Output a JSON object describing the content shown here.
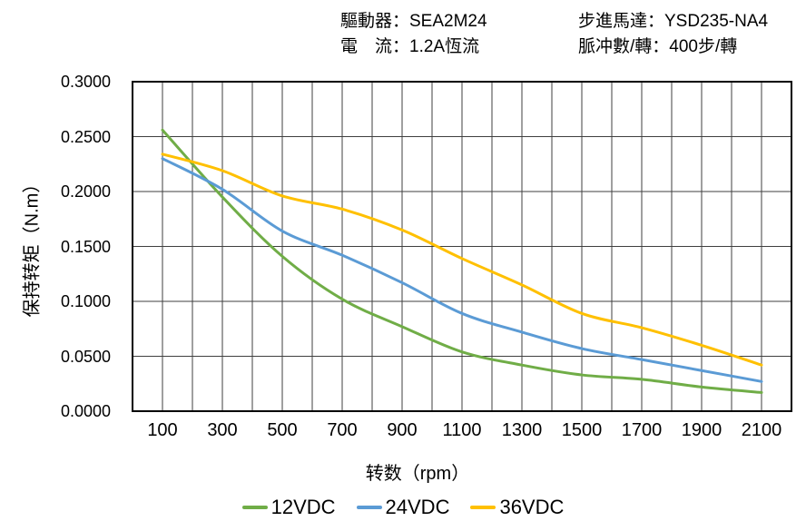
{
  "header": {
    "driver": "驅動器：SEA2M24",
    "current": "電　流：1.2A恆流",
    "motor": "步進馬達：YSD235-NA4",
    "pulses": "脈冲數/轉：400步/轉"
  },
  "colors": {
    "grid": "#3f3f3f",
    "border": "#000000",
    "text": "#000000",
    "series_12vdc": "#70AD47",
    "series_24vdc": "#5B9BD5",
    "series_36vdc": "#FFC000"
  },
  "chart_data": {
    "type": "line",
    "title": "",
    "xlabel": "转数（rpm）",
    "ylabel": "保持转矩（N.m）",
    "xlim": [
      0,
      2200
    ],
    "ylim": [
      0,
      0.3
    ],
    "grid": true,
    "x_grid_step": 100,
    "y_grid_step": 0.05,
    "legend_position": "bottom",
    "xtick_values": [
      100,
      300,
      500,
      700,
      900,
      1100,
      1300,
      1500,
      1700,
      1900,
      2100
    ],
    "xtick_labels": [
      "100",
      "300",
      "500",
      "700",
      "900",
      "1100",
      "1300",
      "1500",
      "1700",
      "1900",
      "2100"
    ],
    "ytick_values": [
      0.3,
      0.25,
      0.2,
      0.15,
      0.1,
      0.05,
      0
    ],
    "ytick_labels": [
      "0.3000",
      "0.2500",
      "0.2000",
      "0.1500",
      "0.1000",
      "0.0500",
      "0.0000"
    ],
    "x": [
      100,
      300,
      500,
      700,
      900,
      1100,
      1300,
      1500,
      1700,
      1900,
      2100
    ],
    "series": [
      {
        "name": "12VDC",
        "color": "#70AD47",
        "values": [
          0.256,
          0.195,
          0.141,
          0.102,
          0.077,
          0.054,
          0.042,
          0.033,
          0.029,
          0.022,
          0.017
        ]
      },
      {
        "name": "24VDC",
        "color": "#5B9BD5",
        "values": [
          0.23,
          0.202,
          0.164,
          0.142,
          0.117,
          0.089,
          0.072,
          0.057,
          0.047,
          0.037,
          0.027
        ]
      },
      {
        "name": "36VDC",
        "color": "#FFC000",
        "values": [
          0.234,
          0.219,
          0.196,
          0.184,
          0.165,
          0.139,
          0.115,
          0.089,
          0.076,
          0.06,
          0.042
        ]
      }
    ]
  }
}
